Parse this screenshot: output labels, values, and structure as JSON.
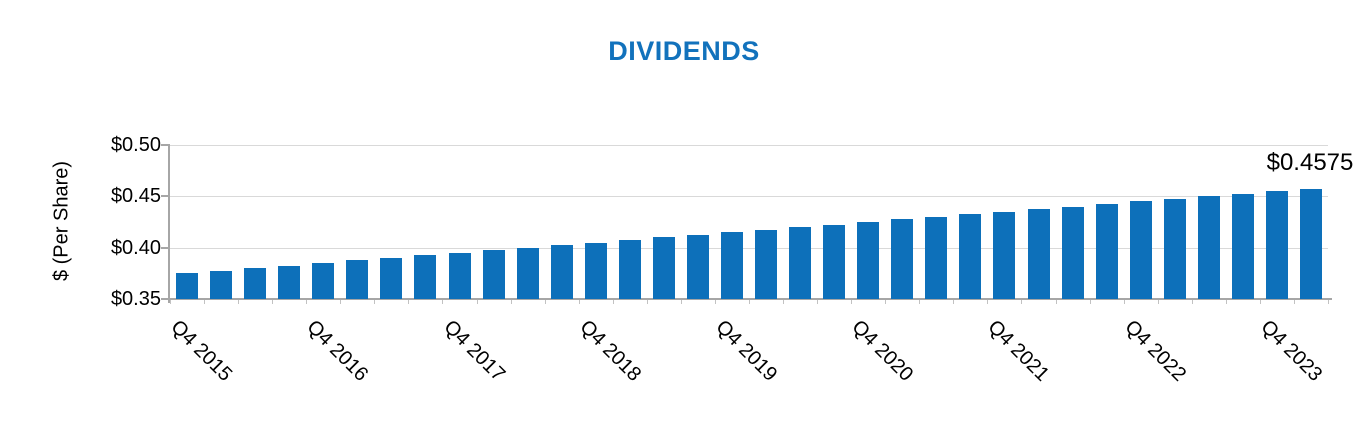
{
  "chart_data": {
    "type": "bar",
    "title": "DIVIDENDS",
    "ylabel": "$ (Per Share)",
    "xlabel": "",
    "ylim": [
      0.35,
      0.5
    ],
    "grid": true,
    "n_bars": 34,
    "values": [
      0.375,
      0.3775,
      0.38,
      0.3825,
      0.385,
      0.3875,
      0.39,
      0.3925,
      0.395,
      0.3975,
      0.4,
      0.4025,
      0.405,
      0.4075,
      0.41,
      0.4125,
      0.415,
      0.4175,
      0.42,
      0.4225,
      0.425,
      0.4275,
      0.43,
      0.4325,
      0.435,
      0.4375,
      0.44,
      0.4425,
      0.445,
      0.4475,
      0.45,
      0.4525,
      0.455,
      0.4575
    ],
    "y_ticks": [
      {
        "value": 0.35,
        "label": "$0.35"
      },
      {
        "value": 0.4,
        "label": "$0.40"
      },
      {
        "value": 0.45,
        "label": "$0.45"
      },
      {
        "value": 0.5,
        "label": "$0.50"
      }
    ],
    "x_tick_labels": [
      {
        "index": 0,
        "label": "Q4 2015"
      },
      {
        "index": 4,
        "label": "Q4 2016"
      },
      {
        "index": 8,
        "label": "Q4 2017"
      },
      {
        "index": 12,
        "label": "Q4 2018"
      },
      {
        "index": 16,
        "label": "Q4 2019"
      },
      {
        "index": 20,
        "label": "Q4 2020"
      },
      {
        "index": 24,
        "label": "Q4 2021"
      },
      {
        "index": 28,
        "label": "Q4 2022"
      },
      {
        "index": 32,
        "label": "Q4 2023"
      }
    ],
    "annotation": "$0.4575",
    "colors": {
      "bar": "#0D70BA",
      "title": "#1272BC",
      "gridline": "#D9D9D9",
      "axis": "#A6A6A6",
      "boundary_tick": "#C2C2C2"
    }
  }
}
